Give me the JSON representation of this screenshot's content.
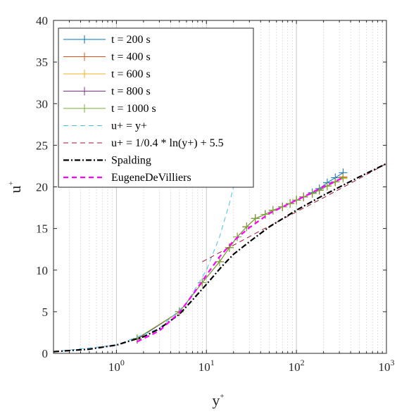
{
  "chart_data": {
    "type": "line",
    "xscale": "log",
    "xlim": [
      0.2,
      1000
    ],
    "ylim": [
      0,
      40
    ],
    "grid": "x-minor-and-major",
    "legend_placement": "top-left",
    "xlabel": {
      "base": "y",
      "sup": "+"
    },
    "ylabel": {
      "base": "u",
      "sup": "+"
    },
    "xticks": [
      {
        "value": 1,
        "base": "10",
        "exp": "0"
      },
      {
        "value": 10,
        "base": "10",
        "exp": "1"
      },
      {
        "value": 100,
        "base": "10",
        "exp": "2"
      },
      {
        "value": 1000,
        "base": "10",
        "exp": "3"
      }
    ],
    "yticks": [
      0,
      5,
      10,
      15,
      20,
      25,
      30,
      35,
      40
    ],
    "series": [
      {
        "name": "t = 200 s",
        "color": "#0072BD",
        "style": "solid",
        "marker": "plus",
        "x": [
          1.7,
          5.0,
          9.0,
          14.0,
          18.0,
          22.0,
          28.0,
          35.0,
          45.0,
          55.0,
          70.0,
          85.0,
          100.0,
          120.0,
          150.0,
          180.0,
          220.0,
          270.0,
          330.0
        ],
        "y": [
          1.7,
          5.0,
          8.5,
          11.0,
          12.7,
          14.0,
          15.2,
          16.2,
          16.7,
          17.2,
          17.6,
          18.0,
          18.4,
          18.8,
          19.3,
          19.8,
          20.5,
          21.1,
          21.7
        ]
      },
      {
        "name": "t = 400 s",
        "color": "#D95319",
        "style": "solid",
        "marker": "plus",
        "x": [
          1.7,
          5.0,
          9.0,
          14.0,
          18.0,
          22.0,
          28.0,
          35.0,
          45.0,
          55.0,
          70.0,
          85.0,
          100.0,
          120.0,
          150.0,
          180.0,
          220.0,
          270.0,
          330.0
        ],
        "y": [
          1.7,
          5.0,
          8.5,
          11.0,
          12.7,
          14.0,
          15.2,
          16.2,
          16.7,
          17.2,
          17.6,
          18.0,
          18.4,
          18.8,
          19.2,
          19.6,
          20.1,
          20.6,
          21.2
        ]
      },
      {
        "name": "t = 600 s",
        "color": "#EDB120",
        "style": "solid",
        "marker": "plus",
        "x": [
          1.7,
          5.0,
          9.0,
          14.0,
          18.0,
          22.0,
          28.0,
          35.0,
          45.0,
          55.0,
          70.0,
          85.0,
          100.0,
          120.0,
          150.0,
          180.0,
          220.0,
          270.0,
          330.0
        ],
        "y": [
          1.7,
          5.0,
          8.5,
          11.0,
          12.7,
          14.0,
          15.2,
          16.2,
          16.7,
          17.2,
          17.6,
          18.0,
          18.4,
          18.8,
          19.2,
          19.6,
          20.1,
          20.6,
          21.0
        ]
      },
      {
        "name": "t = 800 s",
        "color": "#7E2F8E",
        "style": "solid",
        "marker": "plus",
        "x": [
          1.7,
          5.0,
          9.0,
          14.0,
          18.0,
          22.0,
          28.0,
          35.0,
          45.0,
          55.0,
          70.0,
          85.0,
          100.0,
          120.0,
          150.0,
          180.0,
          220.0,
          270.0,
          330.0
        ],
        "y": [
          1.7,
          5.0,
          8.5,
          11.0,
          12.7,
          14.0,
          15.2,
          16.2,
          16.7,
          17.2,
          17.6,
          18.0,
          18.4,
          18.8,
          19.2,
          19.6,
          20.1,
          20.6,
          21.1
        ]
      },
      {
        "name": "t = 1000 s",
        "color": "#77AC30",
        "style": "solid",
        "marker": "plus",
        "x": [
          1.7,
          5.0,
          9.0,
          14.0,
          18.0,
          22.0,
          28.0,
          35.0,
          45.0,
          55.0,
          70.0,
          85.0,
          100.0,
          120.0,
          150.0,
          180.0,
          220.0,
          270.0,
          330.0
        ],
        "y": [
          1.8,
          5.0,
          8.5,
          11.0,
          12.7,
          14.0,
          15.2,
          16.2,
          16.7,
          17.2,
          17.6,
          18.0,
          18.4,
          18.8,
          19.2,
          19.6,
          20.1,
          20.6,
          21.1
        ]
      },
      {
        "name": "u+ = y+",
        "color": "#4DBEEE",
        "style": "dashed",
        "marker": "none",
        "x": [
          0.2,
          1.0,
          3.0,
          6.0,
          10.0,
          14.0,
          18.0,
          20.0
        ],
        "y": [
          0.2,
          1.0,
          3.0,
          6.0,
          10.0,
          14.0,
          18.0,
          20.0
        ]
      },
      {
        "name": "u+ = 1/0.4 * ln(y+) + 5.5",
        "color": "#A2142F",
        "style": "dashed",
        "marker": "none",
        "x": [
          9.0,
          20.0,
          50.0,
          100.0,
          200.0,
          500.0,
          1000.0
        ],
        "y": [
          11.0,
          13.0,
          15.3,
          17.0,
          18.7,
          21.0,
          22.8
        ]
      },
      {
        "name": "Spalding",
        "color": "#000000",
        "style": "dashdot",
        "marker": "none",
        "x": [
          0.2,
          0.5,
          1.0,
          2.0,
          3.0,
          5.0,
          7.0,
          10.0,
          15.0,
          20.0,
          30.0,
          50.0,
          100.0,
          200.0,
          500.0,
          1000.0
        ],
        "y": [
          0.2,
          0.5,
          1.0,
          2.0,
          2.95,
          4.7,
          6.4,
          8.3,
          10.5,
          11.9,
          13.4,
          15.2,
          17.2,
          19.0,
          21.2,
          22.8
        ]
      },
      {
        "name": "EugeneDeVilliers",
        "color": "#FF00FF",
        "style": "dashed",
        "marker": "none",
        "x": [
          1.7,
          3.0,
          5.0,
          7.0,
          10.0,
          14.0,
          20.0,
          30.0,
          50.0,
          80.0,
          120.0,
          180.0,
          250.0,
          330.0
        ],
        "y": [
          1.4,
          2.7,
          4.9,
          7.0,
          9.4,
          11.6,
          13.5,
          15.1,
          16.8,
          17.9,
          18.8,
          19.8,
          20.5,
          21.1
        ]
      }
    ]
  }
}
